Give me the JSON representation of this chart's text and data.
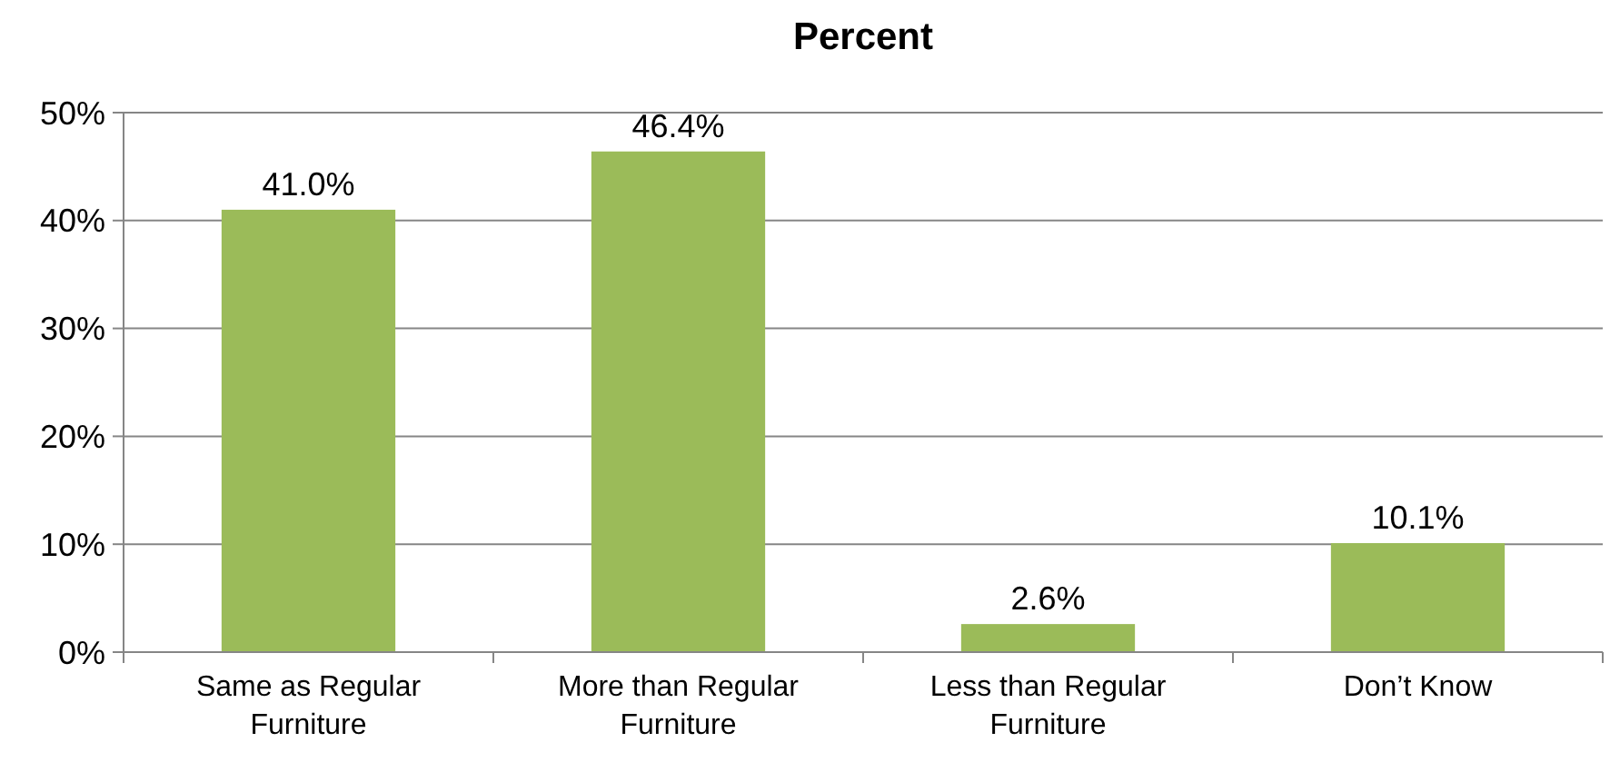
{
  "chart_data": {
    "type": "bar",
    "title": "Percent",
    "categories": [
      "Same as Regular Furniture",
      "More than Regular Furniture",
      "Less than Regular Furniture",
      "Don’t Know"
    ],
    "values": [
      41.0,
      46.4,
      2.6,
      10.1
    ],
    "value_labels": [
      "41.0%",
      "46.4%",
      "2.6%",
      "10.1%"
    ],
    "color": "#9bbb59",
    "ylim": [
      0,
      50
    ],
    "yticks": [
      {
        "value": 0,
        "label": "0%"
      },
      {
        "value": 10,
        "label": "10%"
      },
      {
        "value": 20,
        "label": "20%"
      },
      {
        "value": 30,
        "label": "30%"
      },
      {
        "value": 40,
        "label": "40%"
      },
      {
        "value": 50,
        "label": "50%"
      }
    ],
    "grid": true
  }
}
